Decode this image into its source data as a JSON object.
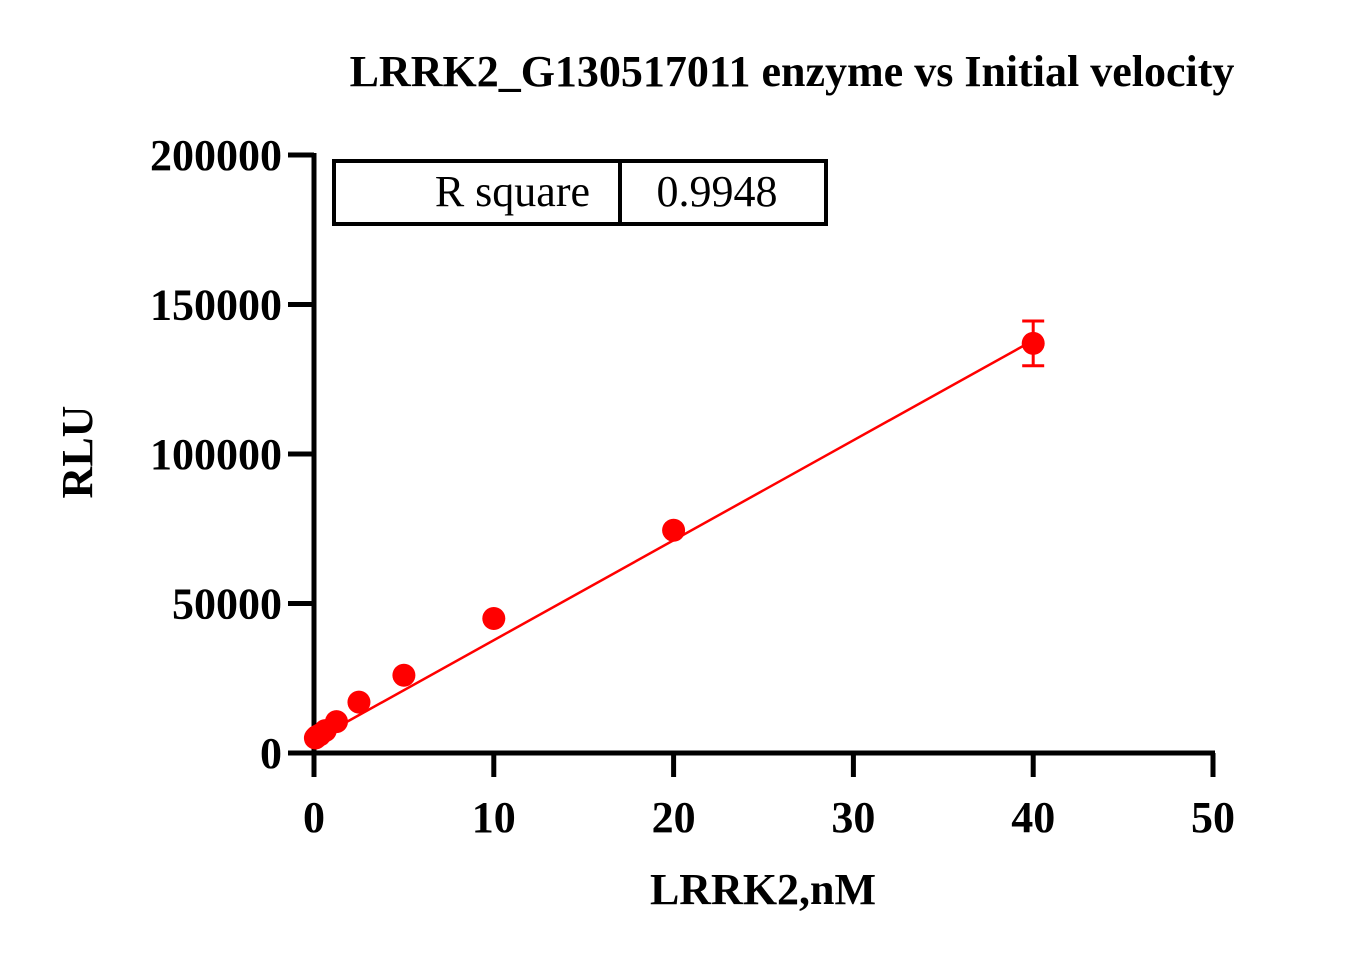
{
  "chart_data": {
    "type": "scatter",
    "title": "LRRK2_G130517011 enzyme vs Initial velocity",
    "xlabel": "LRRK2,nM",
    "ylabel": "RLU",
    "xlim": [
      0,
      50
    ],
    "ylim": [
      0,
      200000
    ],
    "xticks": [
      "0",
      "10",
      "20",
      "30",
      "40",
      "50"
    ],
    "yticks": [
      "0",
      "50000",
      "100000",
      "150000",
      "200000"
    ],
    "grid": false,
    "color": "#ff0000",
    "points": [
      {
        "x": 0.078,
        "y": 5000,
        "err": 0
      },
      {
        "x": 0.156,
        "y": 5500,
        "err": 0
      },
      {
        "x": 0.3125,
        "y": 6000,
        "err": 0
      },
      {
        "x": 0.625,
        "y": 7500,
        "err": 0
      },
      {
        "x": 1.25,
        "y": 10500,
        "err": 0
      },
      {
        "x": 2.5,
        "y": 17000,
        "err": 0
      },
      {
        "x": 5,
        "y": 26000,
        "err": 0
      },
      {
        "x": 10,
        "y": 45000,
        "err": 0
      },
      {
        "x": 20,
        "y": 74500,
        "err": 0
      },
      {
        "x": 40,
        "y": 137000,
        "err": 7500
      }
    ],
    "fit_line": {
      "x": [
        0,
        40
      ],
      "y": [
        4300,
        138000
      ]
    },
    "stats": {
      "label": "R square",
      "value": "0.9948"
    }
  }
}
